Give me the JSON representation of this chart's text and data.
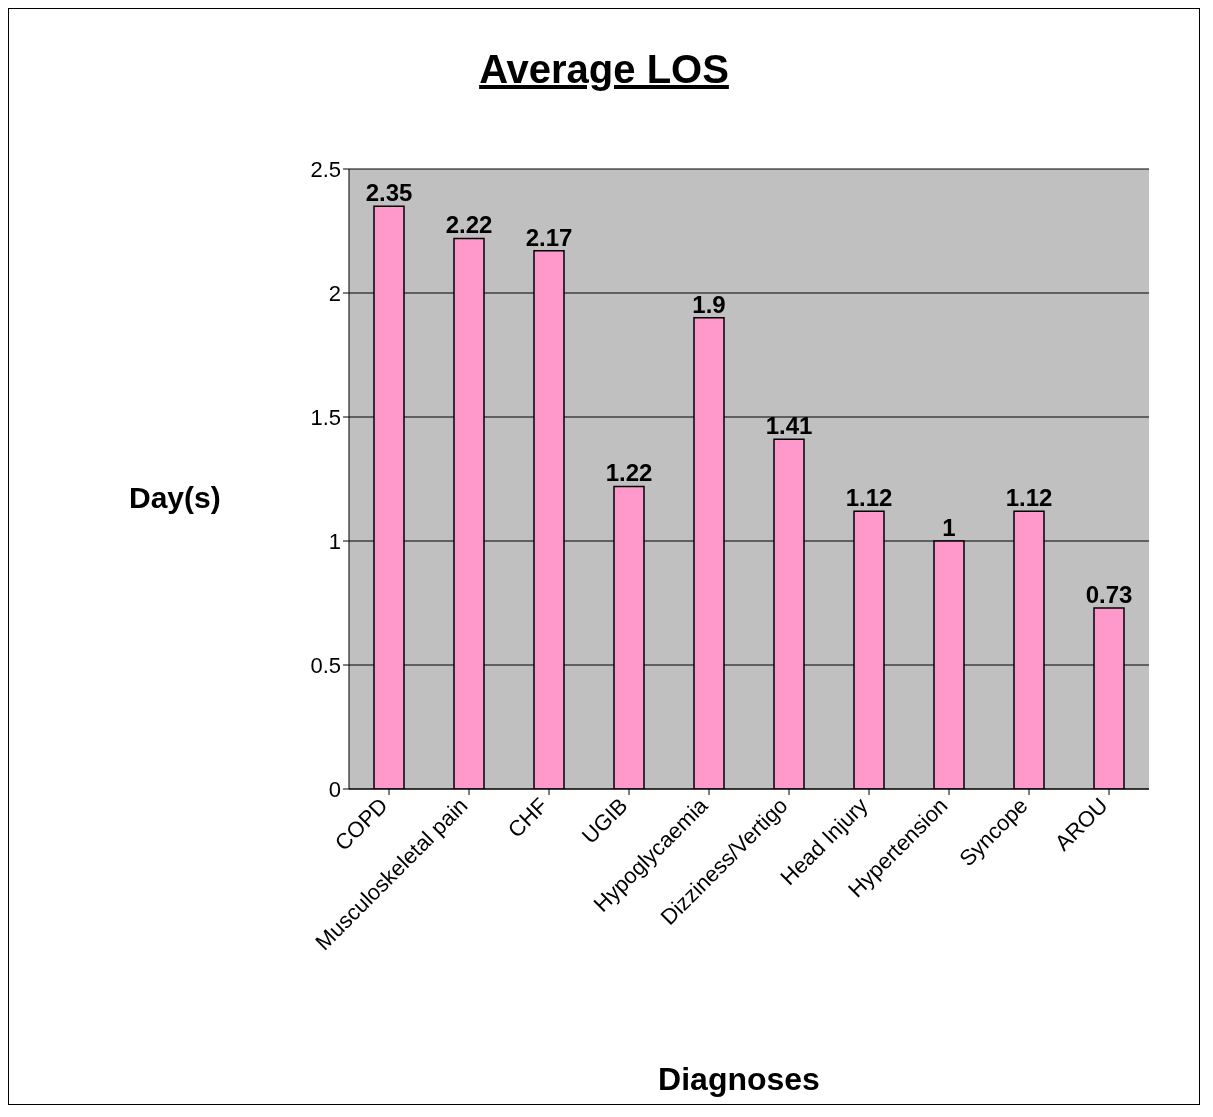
{
  "chart_data": {
    "type": "bar",
    "title": "Average LOS",
    "xlabel": "Diagnoses",
    "ylabel": "Day(s)",
    "categories": [
      "COPD",
      "Musculoskeletal pain",
      "CHF",
      "UGIB",
      "Hypoglycaemia",
      "Dizziness/Vertigo",
      "Head Injury",
      "Hypertension",
      "Syncope",
      "AROU"
    ],
    "values": [
      2.35,
      2.22,
      2.17,
      1.22,
      1.9,
      1.41,
      1.12,
      1,
      1.12,
      0.73
    ],
    "color": "#ff99cc",
    "ylim": [
      0,
      2.5
    ],
    "yticks": [
      0,
      0.5,
      1,
      1.5,
      2,
      2.5
    ],
    "grid": "y",
    "data_labels": true
  }
}
